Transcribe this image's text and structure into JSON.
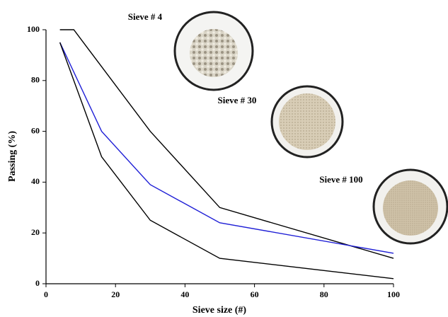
{
  "chart_data": {
    "type": "line",
    "x_label": "Sieve size (#)",
    "y_label": "Passing (%)",
    "annotations": [
      "Sieve # 4",
      "Sieve # 30",
      "Sieve # 100"
    ],
    "series": [
      {
        "color": "#000000",
        "x": [
          4,
          8,
          30,
          50,
          100
        ],
        "values": [
          100,
          100,
          60,
          30,
          10
        ]
      },
      {
        "color": "#1f1fd6",
        "x": [
          4,
          16,
          30,
          50,
          100
        ],
        "values": [
          95,
          60,
          39,
          24,
          12
        ]
      },
      {
        "color": "#000000",
        "x": [
          4,
          16,
          30,
          50,
          100
        ],
        "values": [
          95,
          50,
          25,
          10,
          2
        ]
      }
    ],
    "xlim": [
      0,
      100
    ],
    "xticks": [
      0,
      20,
      40,
      60,
      80,
      100
    ],
    "ylim": [
      0,
      100
    ],
    "yticks": [
      0,
      20,
      40,
      60,
      80,
      100
    ]
  }
}
